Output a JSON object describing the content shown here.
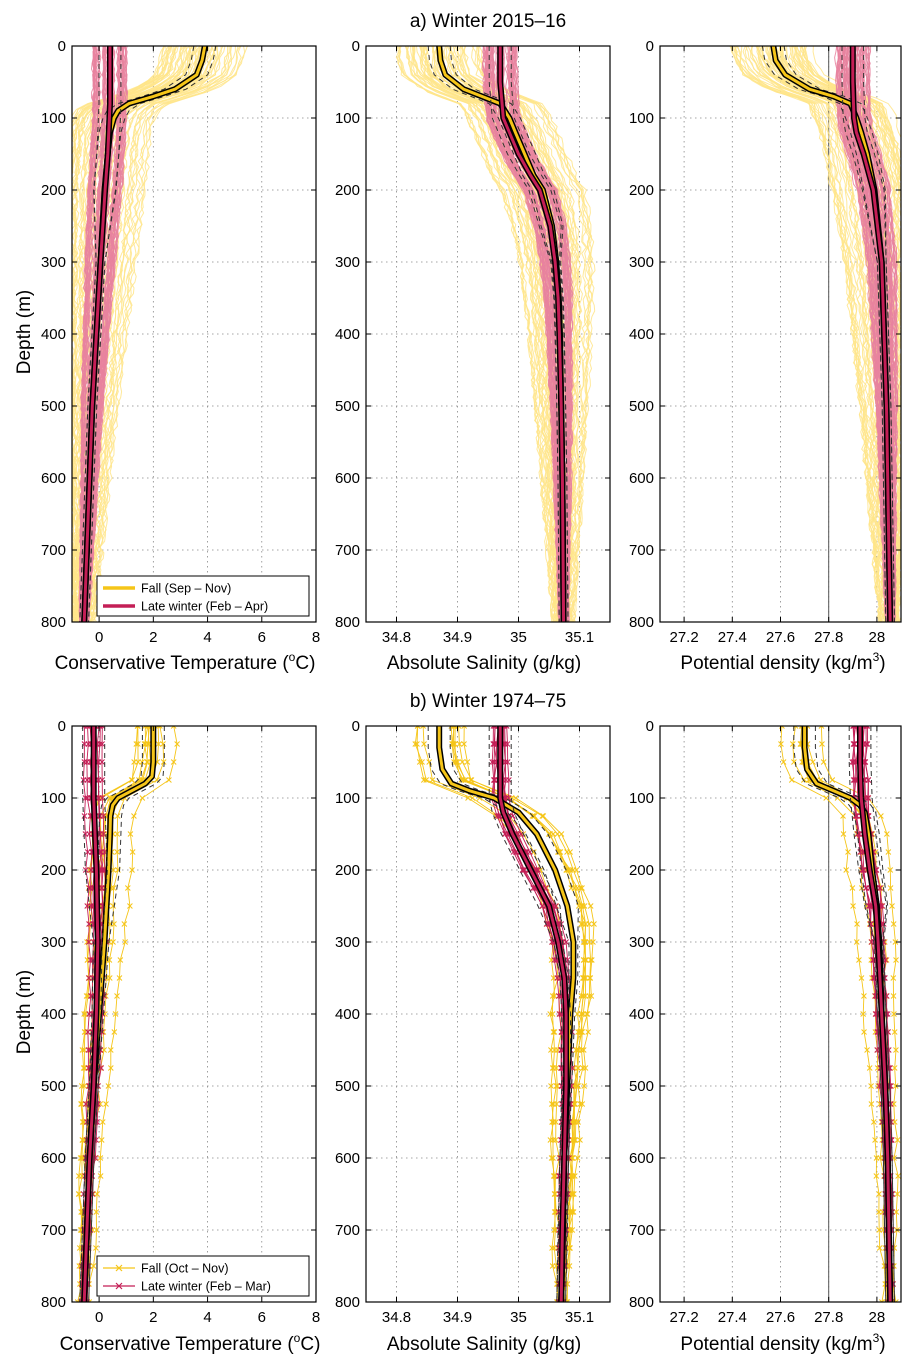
{
  "figure": {
    "title_a": "a) Winter 2015–16",
    "title_b": "b) Winter 1974–75",
    "ylabel": "Depth (m)",
    "xlabel_temp": "Conservative Temperature",
    "xlabel_temp_unit_pre": "(",
    "xlabel_temp_sup": "o",
    "xlabel_temp_unit_post": "C)",
    "xlabel_sal": "Absolute Salinity (g/kg)",
    "xlabel_dens": "Potential density (kg/m",
    "xlabel_dens_sup": "3",
    "xlabel_dens_post": ")"
  },
  "colors": {
    "fall": "#f5c518",
    "fall_light": "#ffe58a",
    "winter": "#c41e56",
    "winter_light": "#e8839f",
    "mean_edge": "#000000",
    "spread": "#333333"
  },
  "chart_data": [
    {
      "id": "a1",
      "type": "line",
      "panel": "a) Winter 2015–16",
      "xlabel": "Conservative Temperature (oC)",
      "ylabel": "Depth (m)",
      "xlim": [
        -1,
        8
      ],
      "ylim": [
        0,
        800
      ],
      "y_reversed": true,
      "xticks": [
        0,
        2,
        4,
        6,
        8
      ],
      "xtick_labels": [
        "0",
        "2",
        "4",
        "6",
        "8"
      ],
      "yticks": [
        0,
        100,
        200,
        300,
        400,
        500,
        600,
        700,
        800
      ],
      "grid": "dotted",
      "legend": {
        "placement": "bottom-left",
        "entries": [
          "Fall (Sep – Nov)",
          "Late winter (Feb – Apr)"
        ]
      },
      "series": [
        {
          "name": "Fall (Sep – Nov)",
          "depth": [
            0,
            10,
            20,
            40,
            60,
            70,
            80,
            90,
            100,
            120,
            150,
            200,
            300,
            400,
            500,
            600,
            700,
            800
          ],
          "values": [
            3.9,
            3.85,
            3.8,
            3.6,
            2.8,
            2.0,
            1.1,
            0.7,
            0.55,
            0.4,
            0.32,
            0.2,
            0.05,
            -0.1,
            -0.25,
            -0.35,
            -0.45,
            -0.55
          ]
        },
        {
          "name": "Late winter (Feb – Apr)",
          "depth": [
            0,
            20,
            50,
            80,
            100,
            150,
            200,
            300,
            400,
            500,
            600,
            700,
            800
          ],
          "values": [
            0.4,
            0.4,
            0.4,
            0.4,
            0.38,
            0.32,
            0.22,
            0.05,
            -0.1,
            -0.25,
            -0.35,
            -0.45,
            -0.55
          ]
        }
      ]
    },
    {
      "id": "a2",
      "type": "line",
      "xlabel": "Absolute Salinity (g/kg)",
      "xlim": [
        34.75,
        35.15
      ],
      "ylim": [
        0,
        800
      ],
      "y_reversed": true,
      "xticks": [
        34.8,
        34.9,
        35,
        35.1
      ],
      "xtick_labels": [
        "34.8",
        "34.9",
        "35",
        "35.1"
      ],
      "yticks": [
        0,
        100,
        200,
        300,
        400,
        500,
        600,
        700,
        800
      ],
      "grid": "dotted",
      "series": [
        {
          "name": "Fall (Sep – Nov)",
          "depth": [
            0,
            20,
            40,
            60,
            70,
            80,
            100,
            120,
            150,
            180,
            200,
            250,
            300,
            350,
            400,
            500,
            600,
            700,
            800
          ],
          "values": [
            34.87,
            34.872,
            34.88,
            34.91,
            34.94,
            34.97,
            34.985,
            34.995,
            35.01,
            35.025,
            35.04,
            35.055,
            35.062,
            35.066,
            35.068,
            35.07,
            35.072,
            35.073,
            35.074
          ]
        },
        {
          "name": "Late winter (Feb – Apr)",
          "depth": [
            0,
            50,
            100,
            120,
            150,
            180,
            200,
            250,
            300,
            350,
            400,
            500,
            600,
            700,
            800
          ],
          "values": [
            34.97,
            34.97,
            34.975,
            34.985,
            35.0,
            35.02,
            35.035,
            35.052,
            35.06,
            35.065,
            35.067,
            35.07,
            35.072,
            35.073,
            35.074
          ]
        }
      ]
    },
    {
      "id": "a3",
      "type": "line",
      "xlabel": "Potential density (kg/m3)",
      "xlim": [
        27.1,
        28.1
      ],
      "ylim": [
        0,
        800
      ],
      "y_reversed": true,
      "xticks": [
        27.2,
        27.4,
        27.6,
        27.8,
        28
      ],
      "xtick_labels": [
        "27.2",
        "27.4",
        "27.6",
        "27.8",
        "28"
      ],
      "yticks": [
        0,
        100,
        200,
        300,
        400,
        500,
        600,
        700,
        800
      ],
      "reference_line": 27.8,
      "grid": "dotted",
      "series": [
        {
          "name": "Fall (Sep – Nov)",
          "depth": [
            0,
            20,
            40,
            60,
            70,
            80,
            100,
            120,
            150,
            200,
            300,
            400,
            500,
            600,
            700,
            800
          ],
          "values": [
            27.57,
            27.58,
            27.62,
            27.72,
            27.82,
            27.89,
            27.915,
            27.935,
            27.96,
            27.99,
            28.02,
            28.03,
            28.04,
            28.045,
            28.05,
            28.055
          ]
        },
        {
          "name": "Late winter (Feb – Apr)",
          "depth": [
            0,
            50,
            100,
            120,
            150,
            200,
            300,
            400,
            500,
            600,
            700,
            800
          ],
          "values": [
            27.9,
            27.9,
            27.905,
            27.915,
            27.945,
            27.985,
            28.02,
            28.03,
            28.04,
            28.045,
            28.05,
            28.055
          ]
        }
      ]
    },
    {
      "id": "b1",
      "type": "line",
      "panel": "b) Winter 1974–75",
      "xlabel": "Conservative Temperature (oC)",
      "ylabel": "Depth (m)",
      "xlim": [
        -1,
        8
      ],
      "ylim": [
        0,
        800
      ],
      "y_reversed": true,
      "xticks": [
        0,
        2,
        4,
        6,
        8
      ],
      "xtick_labels": [
        "0",
        "2",
        "4",
        "6",
        "8"
      ],
      "yticks": [
        0,
        100,
        200,
        300,
        400,
        500,
        600,
        700,
        800
      ],
      "grid": "dotted",
      "legend": {
        "placement": "bottom-left",
        "entries": [
          "Fall (Oct – Nov)",
          "Late winter (Feb – Mar)"
        ]
      },
      "series": [
        {
          "name": "Fall (Oct – Nov)",
          "depth": [
            0,
            25,
            50,
            70,
            80,
            90,
            100,
            110,
            125,
            150,
            200,
            300,
            400,
            500,
            600,
            700,
            800
          ],
          "values": [
            2.0,
            2.0,
            2.0,
            1.95,
            1.7,
            1.2,
            0.7,
            0.5,
            0.42,
            0.4,
            0.35,
            0.2,
            0.0,
            -0.2,
            -0.35,
            -0.45,
            -0.55
          ]
        },
        {
          "name": "Late winter (Feb – Mar)",
          "depth": [
            0,
            50,
            100,
            150,
            200,
            300,
            400,
            500,
            600,
            700,
            800
          ],
          "values": [
            -0.2,
            -0.2,
            -0.2,
            -0.15,
            -0.1,
            -0.05,
            -0.1,
            -0.2,
            -0.35,
            -0.45,
            -0.55
          ]
        }
      ]
    },
    {
      "id": "b2",
      "type": "line",
      "xlabel": "Absolute Salinity (g/kg)",
      "xlim": [
        34.75,
        35.15
      ],
      "ylim": [
        0,
        800
      ],
      "y_reversed": true,
      "xticks": [
        34.8,
        34.9,
        35,
        35.1
      ],
      "xtick_labels": [
        "34.8",
        "34.9",
        "35",
        "35.1"
      ],
      "yticks": [
        0,
        100,
        200,
        300,
        400,
        500,
        600,
        700,
        800
      ],
      "grid": "dotted",
      "series": [
        {
          "name": "Fall (Oct – Nov)",
          "depth": [
            0,
            30,
            60,
            80,
            90,
            100,
            120,
            150,
            200,
            250,
            300,
            350,
            400,
            500,
            600,
            700,
            800
          ],
          "values": [
            34.87,
            34.87,
            34.875,
            34.89,
            34.92,
            34.96,
            35.0,
            35.03,
            35.06,
            35.08,
            35.09,
            35.09,
            35.085,
            35.08,
            35.075,
            35.073,
            35.07
          ]
        },
        {
          "name": "Late winter (Feb – Mar)",
          "depth": [
            0,
            50,
            100,
            120,
            150,
            200,
            250,
            300,
            350,
            400,
            500,
            600,
            700,
            800
          ],
          "values": [
            34.97,
            34.97,
            34.97,
            34.975,
            34.99,
            35.02,
            35.05,
            35.065,
            35.075,
            35.078,
            35.078,
            35.075,
            35.072,
            35.07
          ]
        }
      ]
    },
    {
      "id": "b3",
      "type": "line",
      "xlabel": "Potential density (kg/m3)",
      "xlim": [
        27.1,
        28.1
      ],
      "ylim": [
        0,
        800
      ],
      "y_reversed": true,
      "xticks": [
        27.2,
        27.4,
        27.6,
        27.8,
        28
      ],
      "xtick_labels": [
        "27.2",
        "27.4",
        "27.6",
        "27.8",
        "28"
      ],
      "yticks": [
        0,
        100,
        200,
        300,
        400,
        500,
        600,
        700,
        800
      ],
      "reference_line": 27.8,
      "grid": "dotted",
      "series": [
        {
          "name": "Fall (Oct – Nov)",
          "depth": [
            0,
            30,
            60,
            80,
            90,
            100,
            110,
            120,
            150,
            200,
            250,
            300,
            400,
            500,
            600,
            700,
            800
          ],
          "values": [
            27.7,
            27.7,
            27.71,
            27.75,
            27.82,
            27.89,
            27.93,
            27.95,
            27.965,
            27.98,
            28.0,
            28.01,
            28.02,
            28.035,
            28.045,
            28.05,
            28.055
          ]
        },
        {
          "name": "Late winter (Feb – Mar)",
          "depth": [
            0,
            50,
            100,
            150,
            200,
            250,
            300,
            400,
            500,
            600,
            700,
            800
          ],
          "values": [
            27.93,
            27.93,
            27.935,
            27.95,
            27.97,
            27.995,
            28.005,
            28.02,
            28.035,
            28.045,
            28.05,
            28.055
          ]
        }
      ]
    }
  ]
}
